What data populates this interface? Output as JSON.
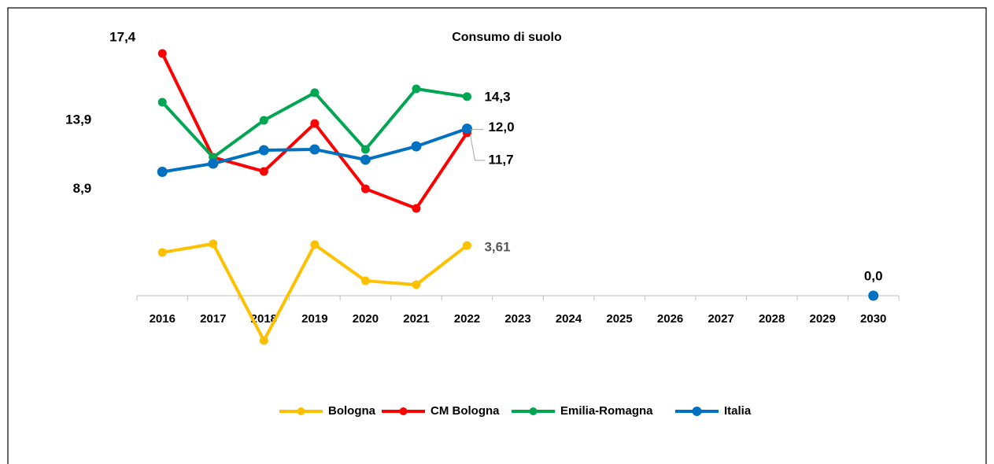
{
  "chart_data": {
    "type": "line",
    "title": "Consumo di suolo",
    "categories": [
      "2016",
      "2017",
      "2018",
      "2019",
      "2020",
      "2021",
      "2022",
      "2023",
      "2024",
      "2025",
      "2026",
      "2027",
      "2028",
      "2029",
      "2030"
    ],
    "ylim": [
      -4,
      18
    ],
    "legend": "bottom",
    "series": [
      {
        "name": "Bologna",
        "color": "#FFC000",
        "values": [
          3.11,
          3.73,
          -3.22,
          3.67,
          1.07,
          0.79,
          3.61,
          null,
          null,
          null,
          null,
          null,
          null,
          null,
          null
        ],
        "value_labels": [
          null,
          null,
          null,
          null,
          null,
          null,
          "3,61",
          null,
          null,
          null,
          null,
          null,
          null,
          null,
          null
        ]
      },
      {
        "name": "CM Bologna",
        "color": "#FF0000",
        "values": [
          17.4,
          9.94,
          8.93,
          12.37,
          7.68,
          6.27,
          11.7,
          null,
          null,
          null,
          null,
          null,
          null,
          null,
          null
        ],
        "value_labels": [
          "17,4",
          null,
          null,
          null,
          null,
          null,
          "11,7",
          null,
          null,
          null,
          null,
          null,
          null,
          null,
          null
        ]
      },
      {
        "name": "Emilia-Romagna",
        "color": "#00A651",
        "values": [
          13.9,
          9.94,
          12.6,
          14.58,
          10.51,
          14.86,
          14.3,
          null,
          null,
          null,
          null,
          null,
          null,
          null,
          null
        ],
        "value_labels": [
          "13,9",
          null,
          null,
          null,
          null,
          null,
          "14,3",
          null,
          null,
          null,
          null,
          null,
          null,
          null,
          null
        ]
      },
      {
        "name": "Italia",
        "color": "#0070C0",
        "values": [
          8.9,
          9.49,
          10.45,
          10.51,
          9.77,
          10.73,
          12.0,
          null,
          null,
          null,
          null,
          null,
          null,
          null,
          0.0
        ],
        "value_labels": [
          "8,9",
          null,
          null,
          null,
          null,
          null,
          "12,0",
          null,
          null,
          null,
          null,
          null,
          null,
          null,
          "0,0"
        ]
      }
    ]
  }
}
